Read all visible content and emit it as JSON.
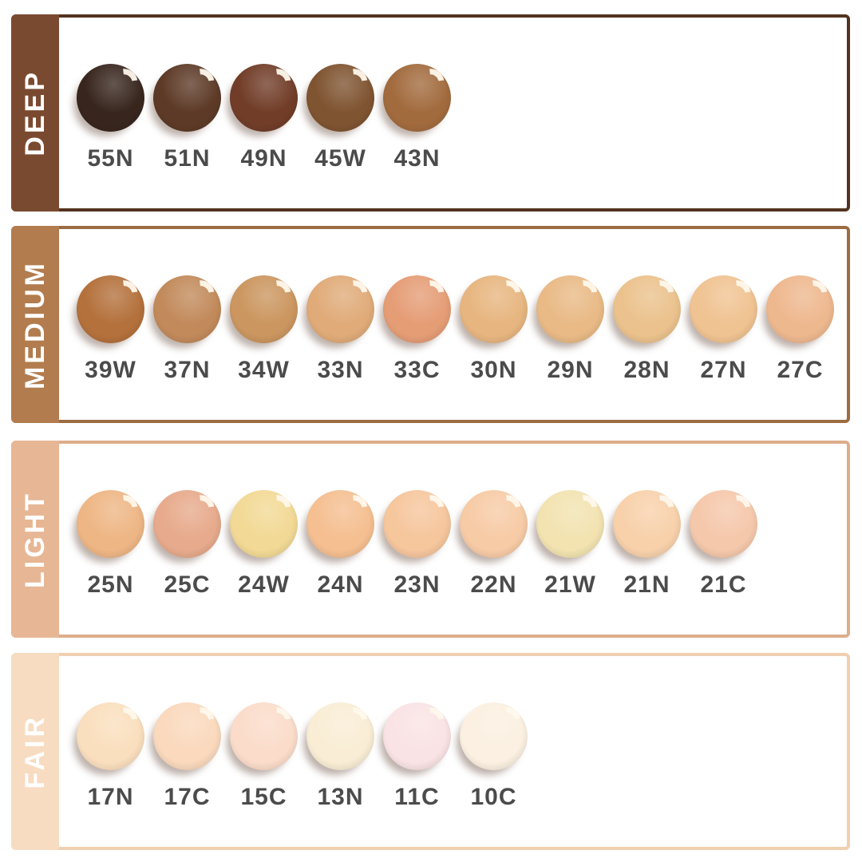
{
  "page": {
    "background": "#ffffff",
    "label_color": "#4b4b4b",
    "gloss_highlight_color": "#fff8ec"
  },
  "groups": [
    {
      "name": "DEEP",
      "band_color": "#7a4a30",
      "border_color": "#53331f",
      "text_color": "#ffffff",
      "shades": [
        {
          "code": "55N",
          "color": "#38261e"
        },
        {
          "code": "51N",
          "color": "#5d3a27"
        },
        {
          "code": "49N",
          "color": "#713d28"
        },
        {
          "code": "45W",
          "color": "#7f5431"
        },
        {
          "code": "43N",
          "color": "#a26b3e"
        }
      ]
    },
    {
      "name": "MEDIUM",
      "band_color": "#b27c4e",
      "border_color": "#9c6c42",
      "text_color": "#ffffff",
      "shades": [
        {
          "code": "39W",
          "color": "#b4713c"
        },
        {
          "code": "37N",
          "color": "#c28a5b"
        },
        {
          "code": "34W",
          "color": "#cb965f"
        },
        {
          "code": "33N",
          "color": "#e0ab79"
        },
        {
          "code": "33C",
          "color": "#e59d76"
        },
        {
          "code": "30N",
          "color": "#e7b680"
        },
        {
          "code": "29N",
          "color": "#e9ba86"
        },
        {
          "code": "28N",
          "color": "#ebc28d"
        },
        {
          "code": "27N",
          "color": "#f0c392"
        },
        {
          "code": "27C",
          "color": "#eeb88f"
        }
      ]
    },
    {
      "name": "LIGHT",
      "band_color": "#e7b795",
      "border_color": "#dcae8b",
      "text_color": "#ffffff",
      "shades": [
        {
          "code": "25N",
          "color": "#eeb685"
        },
        {
          "code": "25C",
          "color": "#e7aa8c"
        },
        {
          "code": "24W",
          "color": "#f2d995"
        },
        {
          "code": "24N",
          "color": "#f5bf91"
        },
        {
          "code": "23N",
          "color": "#f6c69d"
        },
        {
          "code": "22N",
          "color": "#f7cba6"
        },
        {
          "code": "21W",
          "color": "#f2e3b1"
        },
        {
          "code": "21N",
          "color": "#f8d1ab"
        },
        {
          "code": "21C",
          "color": "#f5c8ab"
        }
      ]
    },
    {
      "name": "FAIR",
      "band_color": "#f7dcc2",
      "border_color": "#f0d0b0",
      "text_color": "#ffffff",
      "shades": [
        {
          "code": "17N",
          "color": "#fadfbe"
        },
        {
          "code": "17C",
          "color": "#fad9bd"
        },
        {
          "code": "15C",
          "color": "#fbdcca"
        },
        {
          "code": "13N",
          "color": "#f9edd5"
        },
        {
          "code": "11C",
          "color": "#fae3e4"
        },
        {
          "code": "10C",
          "color": "#fbf0e1"
        }
      ]
    }
  ]
}
